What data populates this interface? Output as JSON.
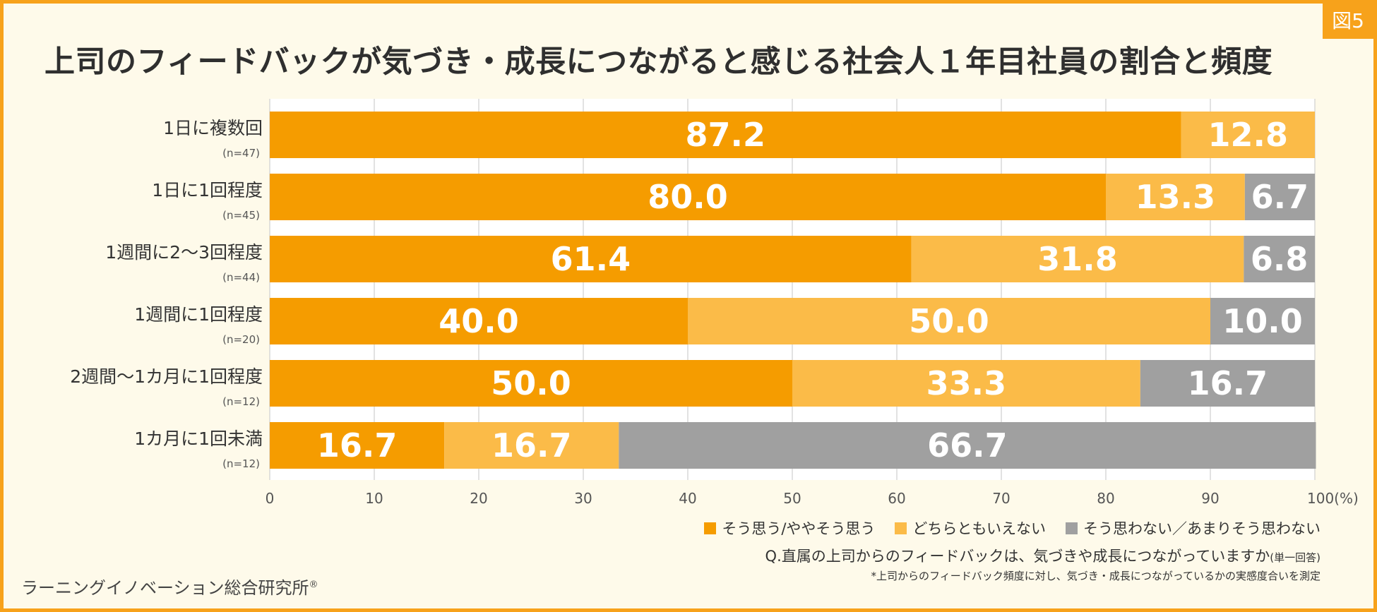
{
  "figure_label": "図5",
  "title": "上司のフィードバックが気づき・成長につながると感じる社会人１年目社員の割合と頻度",
  "chart_data": {
    "type": "bar",
    "orientation": "horizontal",
    "stacked": true,
    "title": "上司のフィードバックが気づき・成長につながると感じる社会人１年目社員の割合と頻度",
    "categories": [
      {
        "label": "1日に複数回",
        "n": "(n=47)"
      },
      {
        "label": "1日に1回程度",
        "n": "(n=45)"
      },
      {
        "label": "1週間に2〜3回程度",
        "n": "(n=44)"
      },
      {
        "label": "1週間に1回程度",
        "n": "(n=20)"
      },
      {
        "label": "2週間〜1カ月に1回程度",
        "n": "(n=12)"
      },
      {
        "label": "1カ月に1回未満",
        "n": "(n=12)"
      }
    ],
    "series": [
      {
        "name": "そう思う/ややそう思う",
        "color": "#f59c00",
        "values": [
          87.2,
          80.0,
          61.4,
          40.0,
          50.0,
          16.7
        ],
        "labels": [
          "87.2",
          "80.0",
          "61.4",
          "40.0",
          "50.0",
          "16.7"
        ]
      },
      {
        "name": "どちらともいえない",
        "color": "#fbbb48",
        "values": [
          12.8,
          13.3,
          31.8,
          50.0,
          33.3,
          16.7
        ],
        "labels": [
          "12.8",
          "13.3",
          "31.8",
          "50.0",
          "33.3",
          "16.7"
        ]
      },
      {
        "name": "そう思わない／あまりそう思わない",
        "color": "#a0a0a0",
        "values": [
          0,
          6.7,
          6.8,
          10.0,
          16.7,
          66.7
        ],
        "labels": [
          "",
          "6.7",
          "6.8",
          "10.0",
          "16.7",
          "66.7"
        ]
      }
    ],
    "xlim": [
      0,
      100
    ],
    "xticks": [
      {
        "value": 0,
        "label": "0"
      },
      {
        "value": 10,
        "label": "10"
      },
      {
        "value": 20,
        "label": "20"
      },
      {
        "value": 30,
        "label": "30"
      },
      {
        "value": 40,
        "label": "40"
      },
      {
        "value": 50,
        "label": "50"
      },
      {
        "value": 60,
        "label": "60"
      },
      {
        "value": 70,
        "label": "70"
      },
      {
        "value": 80,
        "label": "80"
      },
      {
        "value": 90,
        "label": "90"
      },
      {
        "value": 100,
        "label": "100(%)"
      }
    ],
    "grid": true,
    "legend_position": "bottom-right"
  },
  "question": "Q.直属の上司からのフィードバックは、気づきや成長につながっていますか",
  "question_note": "(単一回答)",
  "footnote": "*上司からのフィードバック頻度に対し、気づき・成長につながっているかの実感度合いを測定",
  "source": "ラーニングイノベーション総合研究所",
  "source_mark": "®"
}
